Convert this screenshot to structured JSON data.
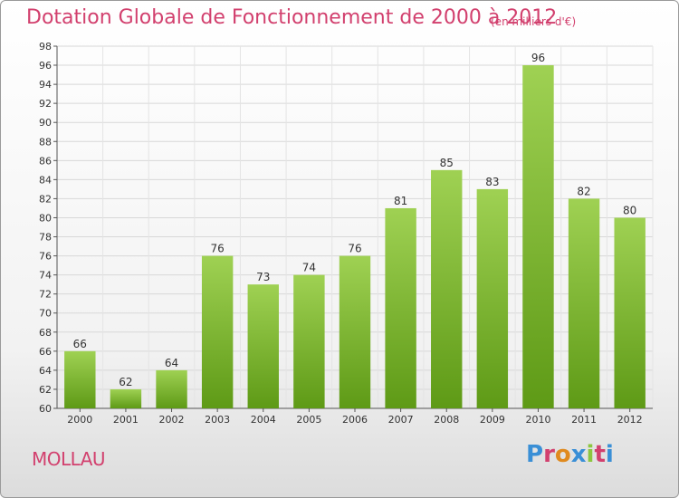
{
  "header": {
    "title": "Dotation Globale de Fonctionnement de 2000 à 2012",
    "subtitle": "(en milliers d'€)"
  },
  "footer": {
    "commune": "MOLLAU",
    "logo_text": "Proxiti",
    "logo_colors": [
      "#3a8fd6",
      "#d2406e",
      "#e08a1e",
      "#3a8fd6",
      "#8cc63f",
      "#d2406e",
      "#3a8fd6"
    ]
  },
  "chart_data": {
    "type": "bar",
    "categories": [
      "2000",
      "2001",
      "2002",
      "2003",
      "2004",
      "2005",
      "2006",
      "2007",
      "2008",
      "2009",
      "2010",
      "2011",
      "2012"
    ],
    "values": [
      66,
      62,
      64,
      76,
      73,
      74,
      76,
      81,
      85,
      83,
      96,
      82,
      80
    ],
    "title": "Dotation Globale de Fonctionnement de 2000 à 2012",
    "subtitle": "(en milliers d'€)",
    "xlabel": "",
    "ylabel": "",
    "ylim": [
      60,
      98
    ],
    "ytick_step": 2,
    "grid": true,
    "bar_color_top": "#9fd153",
    "bar_color_bottom": "#5e9a16",
    "legend": "none"
  }
}
